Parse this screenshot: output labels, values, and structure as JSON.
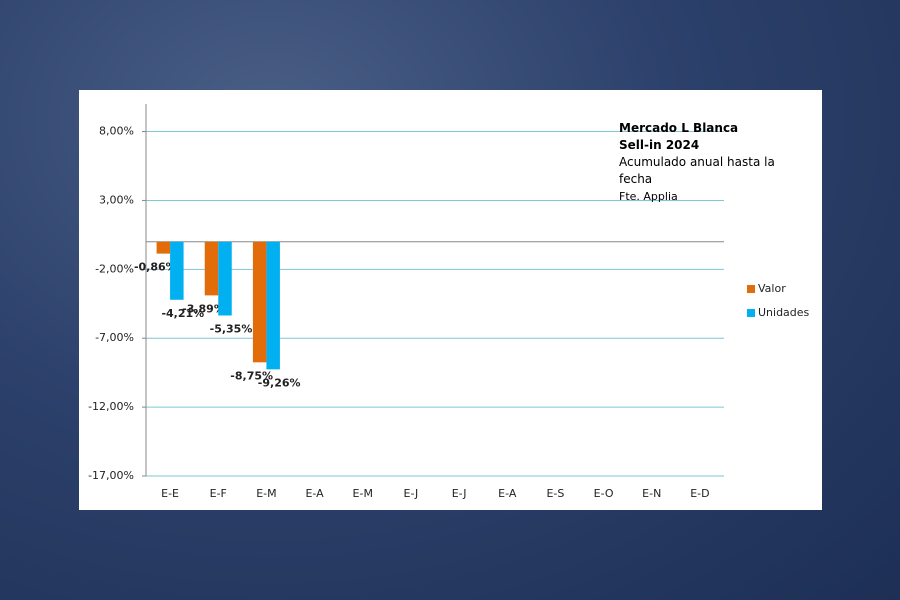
{
  "chart_data": {
    "type": "bar",
    "title": "Mercado L Blanca",
    "subtitle": "Sell-in 2024",
    "annotations": [
      "Acumulado anual hasta la fecha",
      "Fte. Applia"
    ],
    "categories": [
      "E-E",
      "E-F",
      "E-M",
      "E-A",
      "E-M",
      "E-J",
      "E-J",
      "E-A",
      "E-S",
      "E-O",
      "E-N",
      "E-D"
    ],
    "series": [
      {
        "name": "Valor",
        "color": "#e36c0a",
        "label_color": "#e36c0a",
        "values": [
          -0.86,
          -3.89,
          -8.75,
          null,
          null,
          null,
          null,
          null,
          null,
          null,
          null,
          null
        ],
        "value_labels": [
          "-0,86%",
          "-3,89%",
          "-8,75%",
          null,
          null,
          null,
          null,
          null,
          null,
          null,
          null,
          null
        ]
      },
      {
        "name": "Unidades",
        "color": "#00b0f0",
        "label_color": "#1f6fb5",
        "values": [
          -4.21,
          -5.35,
          -9.26,
          null,
          null,
          null,
          null,
          null,
          null,
          null,
          null,
          null
        ],
        "value_labels": [
          "-4,21%",
          "-5,35%",
          "-9,26%",
          null,
          null,
          null,
          null,
          null,
          null,
          null,
          null,
          null
        ]
      }
    ],
    "ylim": [
      -17,
      10
    ],
    "yticks": [
      {
        "value": 8,
        "label": "8,00%"
      },
      {
        "value": 3,
        "label": "3,00%"
      },
      {
        "value": -2,
        "label": "-2,00%"
      },
      {
        "value": -7,
        "label": "-7,00%"
      },
      {
        "value": -12,
        "label": "-12,00%"
      },
      {
        "value": -17,
        "label": "-17,00%"
      }
    ],
    "grid": true,
    "legend": "right"
  }
}
